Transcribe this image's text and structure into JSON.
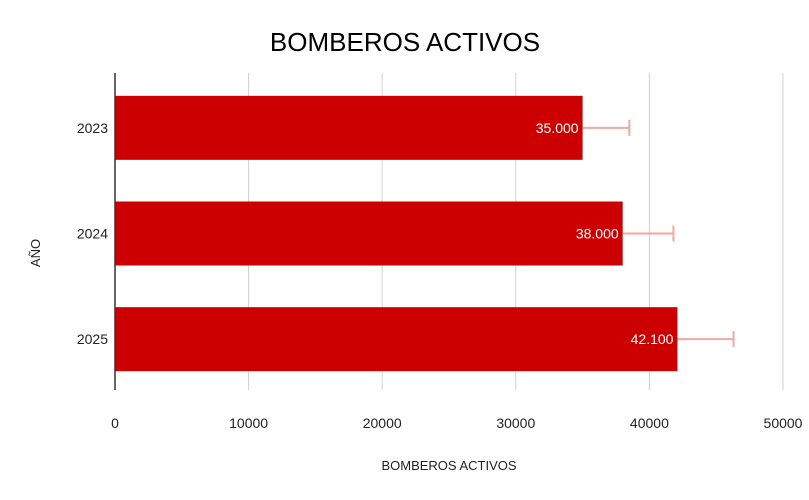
{
  "chart_data": {
    "type": "bar",
    "orientation": "horizontal",
    "title": "BOMBEROS ACTIVOS",
    "xlabel": "BOMBEROS ACTIVOS",
    "ylabel": "AÑO",
    "categories": [
      "2023",
      "2024",
      "2025"
    ],
    "values": [
      35000,
      38000,
      42100
    ],
    "data_labels": [
      "35.000",
      "38.000",
      "42.100"
    ],
    "error_bars": {
      "upper": [
        38500,
        41800,
        46300
      ]
    },
    "xlim": [
      0,
      50000
    ],
    "x_ticks": [
      0,
      10000,
      20000,
      30000,
      40000,
      50000
    ],
    "x_tick_labels": [
      "0",
      "10000",
      "20000",
      "30000",
      "40000",
      "50000"
    ],
    "grid": "vertical",
    "legend": "none",
    "colors": {
      "bar": "#cc0000",
      "error_bar": "#f4a6a0",
      "grid": "#d0d0d0",
      "axis": "#333333"
    }
  }
}
